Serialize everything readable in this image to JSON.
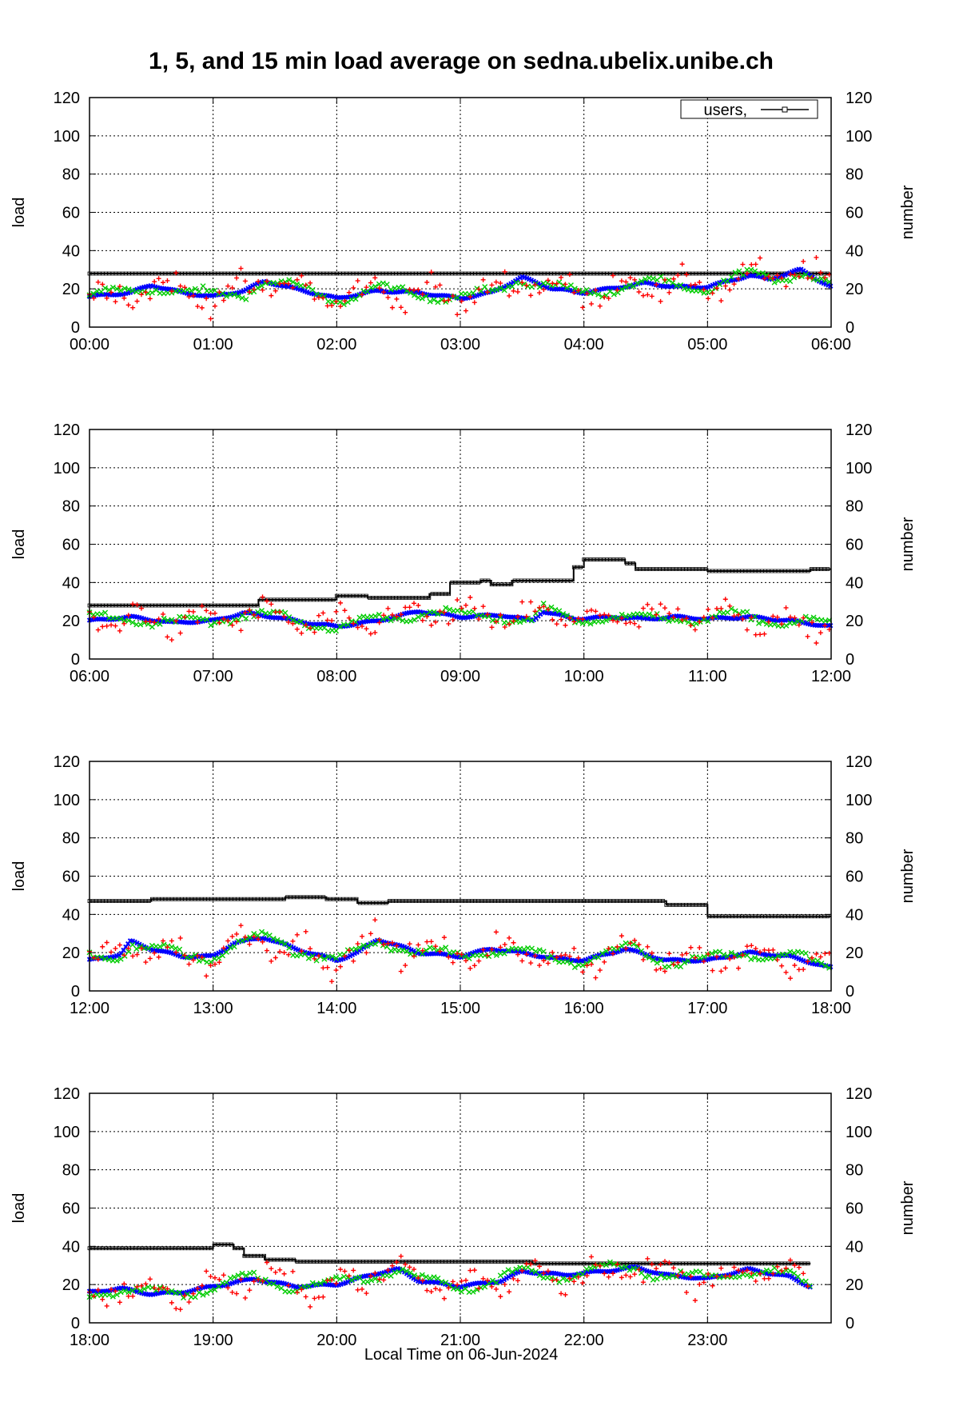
{
  "title": "1, 5, and 15 min load average on sedna.ubelix.unibe.ch",
  "xlabel": "Local Time on 06-Jun-2024",
  "colors": {
    "load_1min": "#ff0000",
    "load_5min": "#00cc00",
    "load_15min": "#0000ff",
    "users": "#000000",
    "grid": "#000000"
  },
  "chart_data": [
    {
      "type": "scatter",
      "panel": 1,
      "xlim": [
        "00:00",
        "06:00"
      ],
      "xticks": [
        "00:00",
        "01:00",
        "02:00",
        "03:00",
        "04:00",
        "05:00",
        "06:00"
      ],
      "ylabel": "load",
      "y2label": "number",
      "ylim": [
        0,
        120
      ],
      "yticks": [
        "0",
        "20",
        "40",
        "60",
        "80",
        "100",
        "120"
      ],
      "y2ticks": [
        "0",
        "20",
        "40",
        "60",
        "80",
        "100",
        "120"
      ],
      "grid": true,
      "legend": {
        "placement": "top-right",
        "entries": [
          "users,"
        ]
      },
      "series": [
        {
          "name": "users,",
          "points": [
            [
              "00:00",
              28
            ],
            [
              "06:00",
              28
            ]
          ]
        },
        {
          "points": [
            [
              "00:00",
              16
            ],
            [
              "00:20",
              18
            ],
            [
              "00:30",
              22
            ],
            [
              "00:45",
              18
            ],
            [
              "01:00",
              16
            ],
            [
              "01:15",
              19
            ],
            [
              "01:25",
              24
            ],
            [
              "01:40",
              20
            ],
            [
              "02:00",
              15
            ],
            [
              "02:20",
              19
            ],
            [
              "02:40",
              18
            ],
            [
              "03:00",
              15
            ],
            [
              "03:15",
              18
            ],
            [
              "03:30",
              26
            ],
            [
              "03:45",
              20
            ],
            [
              "04:00",
              18
            ],
            [
              "04:30",
              23
            ],
            [
              "04:45",
              21
            ],
            [
              "05:00",
              21
            ],
            [
              "05:20",
              27
            ],
            [
              "05:30",
              25
            ],
            [
              "05:45",
              30
            ],
            [
              "06:00",
              21
            ]
          ]
        }
      ]
    },
    {
      "type": "scatter",
      "panel": 2,
      "xlim": [
        "06:00",
        "12:00"
      ],
      "xticks": [
        "06:00",
        "07:00",
        "08:00",
        "09:00",
        "10:00",
        "11:00",
        "12:00"
      ],
      "ylabel": "load",
      "y2label": "number",
      "ylim": [
        0,
        120
      ],
      "yticks": [
        "0",
        "20",
        "40",
        "60",
        "80",
        "100",
        "120"
      ],
      "y2ticks": [
        "0",
        "20",
        "40",
        "60",
        "80",
        "100",
        "120"
      ],
      "grid": true,
      "series": [
        {
          "name": "users,",
          "points": [
            [
              "06:00",
              28
            ],
            [
              "07:20",
              28
            ],
            [
              "07:22",
              31
            ],
            [
              "07:50",
              31
            ],
            [
              "08:00",
              33
            ],
            [
              "08:15",
              32
            ],
            [
              "08:35",
              32
            ],
            [
              "08:45",
              34
            ],
            [
              "08:55",
              40
            ],
            [
              "09:10",
              41
            ],
            [
              "09:15",
              39
            ],
            [
              "09:25",
              41
            ],
            [
              "09:35",
              41
            ],
            [
              "09:50",
              41
            ],
            [
              "09:55",
              48
            ],
            [
              "10:00",
              52
            ],
            [
              "10:20",
              50
            ],
            [
              "10:25",
              47
            ],
            [
              "10:50",
              47
            ],
            [
              "11:00",
              46
            ],
            [
              "11:45",
              46
            ],
            [
              "11:50",
              47
            ],
            [
              "12:00",
              47
            ]
          ]
        },
        {
          "points": [
            [
              "06:00",
              20
            ],
            [
              "06:20",
              22
            ],
            [
              "06:40",
              19
            ],
            [
              "07:00",
              20
            ],
            [
              "07:15",
              24
            ],
            [
              "07:30",
              22
            ],
            [
              "07:45",
              19
            ],
            [
              "08:00",
              17
            ],
            [
              "08:20",
              20
            ],
            [
              "08:40",
              25
            ],
            [
              "09:00",
              22
            ],
            [
              "09:20",
              23
            ],
            [
              "09:35",
              20
            ],
            [
              "09:40",
              25
            ],
            [
              "09:55",
              21
            ],
            [
              "10:15",
              22
            ],
            [
              "10:30",
              21
            ],
            [
              "10:45",
              22
            ],
            [
              "11:00",
              21
            ],
            [
              "11:20",
              22
            ],
            [
              "11:40",
              20
            ],
            [
              "12:00",
              17
            ]
          ]
        }
      ]
    },
    {
      "type": "scatter",
      "panel": 3,
      "xlim": [
        "12:00",
        "18:00"
      ],
      "xticks": [
        "12:00",
        "13:00",
        "14:00",
        "15:00",
        "16:00",
        "17:00",
        "18:00"
      ],
      "ylabel": "load",
      "y2label": "number",
      "ylim": [
        0,
        120
      ],
      "yticks": [
        "0",
        "20",
        "40",
        "60",
        "80",
        "100",
        "120"
      ],
      "y2ticks": [
        "0",
        "20",
        "40",
        "60",
        "80",
        "100",
        "120"
      ],
      "grid": true,
      "series": [
        {
          "name": "users,",
          "points": [
            [
              "12:00",
              47
            ],
            [
              "12:15",
              47
            ],
            [
              "12:30",
              48
            ],
            [
              "13:30",
              48
            ],
            [
              "13:35",
              49
            ],
            [
              "13:55",
              48
            ],
            [
              "14:10",
              46
            ],
            [
              "14:25",
              47
            ],
            [
              "16:30",
              47
            ],
            [
              "16:40",
              45
            ],
            [
              "16:55",
              45
            ],
            [
              "17:00",
              39
            ],
            [
              "18:00",
              39
            ]
          ]
        },
        {
          "points": [
            [
              "12:00",
              16
            ],
            [
              "12:15",
              19
            ],
            [
              "12:20",
              26
            ],
            [
              "12:30",
              22
            ],
            [
              "12:45",
              18
            ],
            [
              "13:00",
              18
            ],
            [
              "13:10",
              25
            ],
            [
              "13:25",
              28
            ],
            [
              "13:40",
              22
            ],
            [
              "14:00",
              16
            ],
            [
              "14:10",
              20
            ],
            [
              "14:20",
              27
            ],
            [
              "14:40",
              20
            ],
            [
              "15:00",
              18
            ],
            [
              "15:15",
              22
            ],
            [
              "15:30",
              20
            ],
            [
              "15:45",
              17
            ],
            [
              "16:00",
              16
            ],
            [
              "16:20",
              22
            ],
            [
              "16:40",
              16
            ],
            [
              "17:00",
              16
            ],
            [
              "17:20",
              20
            ],
            [
              "17:40",
              18
            ],
            [
              "18:00",
              12
            ]
          ]
        }
      ]
    },
    {
      "type": "scatter",
      "panel": 4,
      "xlim": [
        "18:00",
        "24:00"
      ],
      "xticks": [
        "18:00",
        "19:00",
        "20:00",
        "21:00",
        "22:00",
        "23:00"
      ],
      "xlabel": "Local Time on 06-Jun-2024",
      "ylabel": "load",
      "y2label": "number",
      "ylim": [
        0,
        120
      ],
      "yticks": [
        "0",
        "20",
        "40",
        "60",
        "80",
        "100",
        "120"
      ],
      "y2ticks": [
        "0",
        "20",
        "40",
        "60",
        "80",
        "100",
        "120"
      ],
      "grid": true,
      "series": [
        {
          "name": "users,",
          "points": [
            [
              "18:00",
              39
            ],
            [
              "18:55",
              39
            ],
            [
              "19:00",
              41
            ],
            [
              "19:10",
              39
            ],
            [
              "19:15",
              35
            ],
            [
              "19:25",
              33
            ],
            [
              "19:40",
              32
            ],
            [
              "20:30",
              32
            ],
            [
              "21:30",
              32
            ],
            [
              "21:35",
              31
            ],
            [
              "23:50",
              31
            ]
          ]
        },
        {
          "points": [
            [
              "18:00",
              16
            ],
            [
              "18:15",
              18
            ],
            [
              "18:30",
              15
            ],
            [
              "18:45",
              16
            ],
            [
              "19:00",
              19
            ],
            [
              "19:20",
              23
            ],
            [
              "19:40",
              19
            ],
            [
              "20:00",
              20
            ],
            [
              "20:20",
              26
            ],
            [
              "20:30",
              28
            ],
            [
              "20:40",
              22
            ],
            [
              "21:00",
              19
            ],
            [
              "21:20",
              22
            ],
            [
              "21:30",
              27
            ],
            [
              "21:50",
              25
            ],
            [
              "22:10",
              27
            ],
            [
              "22:25",
              29
            ],
            [
              "22:40",
              25
            ],
            [
              "23:00",
              23
            ],
            [
              "23:20",
              28
            ],
            [
              "23:40",
              24
            ],
            [
              "23:50",
              19
            ]
          ]
        }
      ]
    }
  ]
}
